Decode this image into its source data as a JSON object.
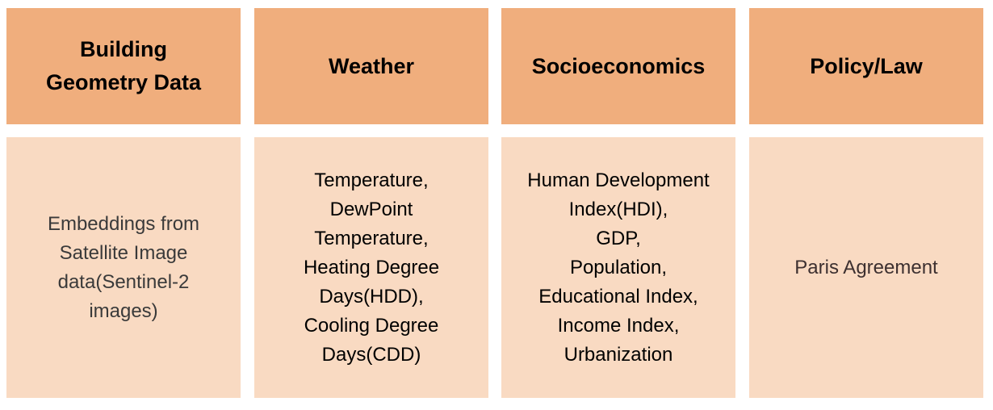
{
  "headers": [
    "Building\nGeometry Data",
    "Weather",
    "Socioeconomics",
    "Policy/Law"
  ],
  "cells": [
    "Embeddings from\nSatellite Image\ndata(Sentinel-2\nimages)",
    "Temperature,\n DewPoint\nTemperature,\nHeating Degree\nDays(HDD),\nCooling Degree\nDays(CDD)",
    "Human Development\nIndex(HDI),\nGDP,\n Population,\nEducational Index,\nIncome Index,\nUrbanization",
    "Paris Agreement"
  ],
  "colors": {
    "header_fill": "#f0ae7d",
    "cell_fill": "#f9dac2"
  }
}
